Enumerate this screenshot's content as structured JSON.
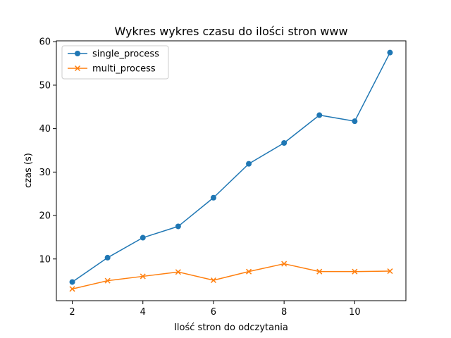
{
  "chart_data": {
    "type": "line",
    "title": "Wykres wykres czasu do ilości stron www",
    "xlabel": "Ilość stron do odczytania",
    "ylabel": "czas (s)",
    "x": [
      2,
      3,
      4,
      5,
      6,
      7,
      8,
      9,
      10,
      11
    ],
    "xlim": [
      1.55,
      11.45
    ],
    "ylim": [
      0.4,
      60.2
    ],
    "xticks": [
      2,
      4,
      6,
      8,
      10
    ],
    "yticks": [
      10,
      20,
      30,
      40,
      50,
      60
    ],
    "grid": false,
    "legend_position": "top-left",
    "series": [
      {
        "name": "single_process",
        "color": "#1f77b4",
        "marker": "circle",
        "values": [
          4.7,
          10.3,
          14.9,
          17.5,
          24.1,
          31.9,
          36.7,
          43.1,
          41.7,
          57.5
        ]
      },
      {
        "name": "multi_process",
        "color": "#ff7f0e",
        "marker": "x",
        "values": [
          3.1,
          5.0,
          6.0,
          7.0,
          5.1,
          7.1,
          8.9,
          7.1,
          7.1,
          7.2
        ]
      }
    ]
  }
}
